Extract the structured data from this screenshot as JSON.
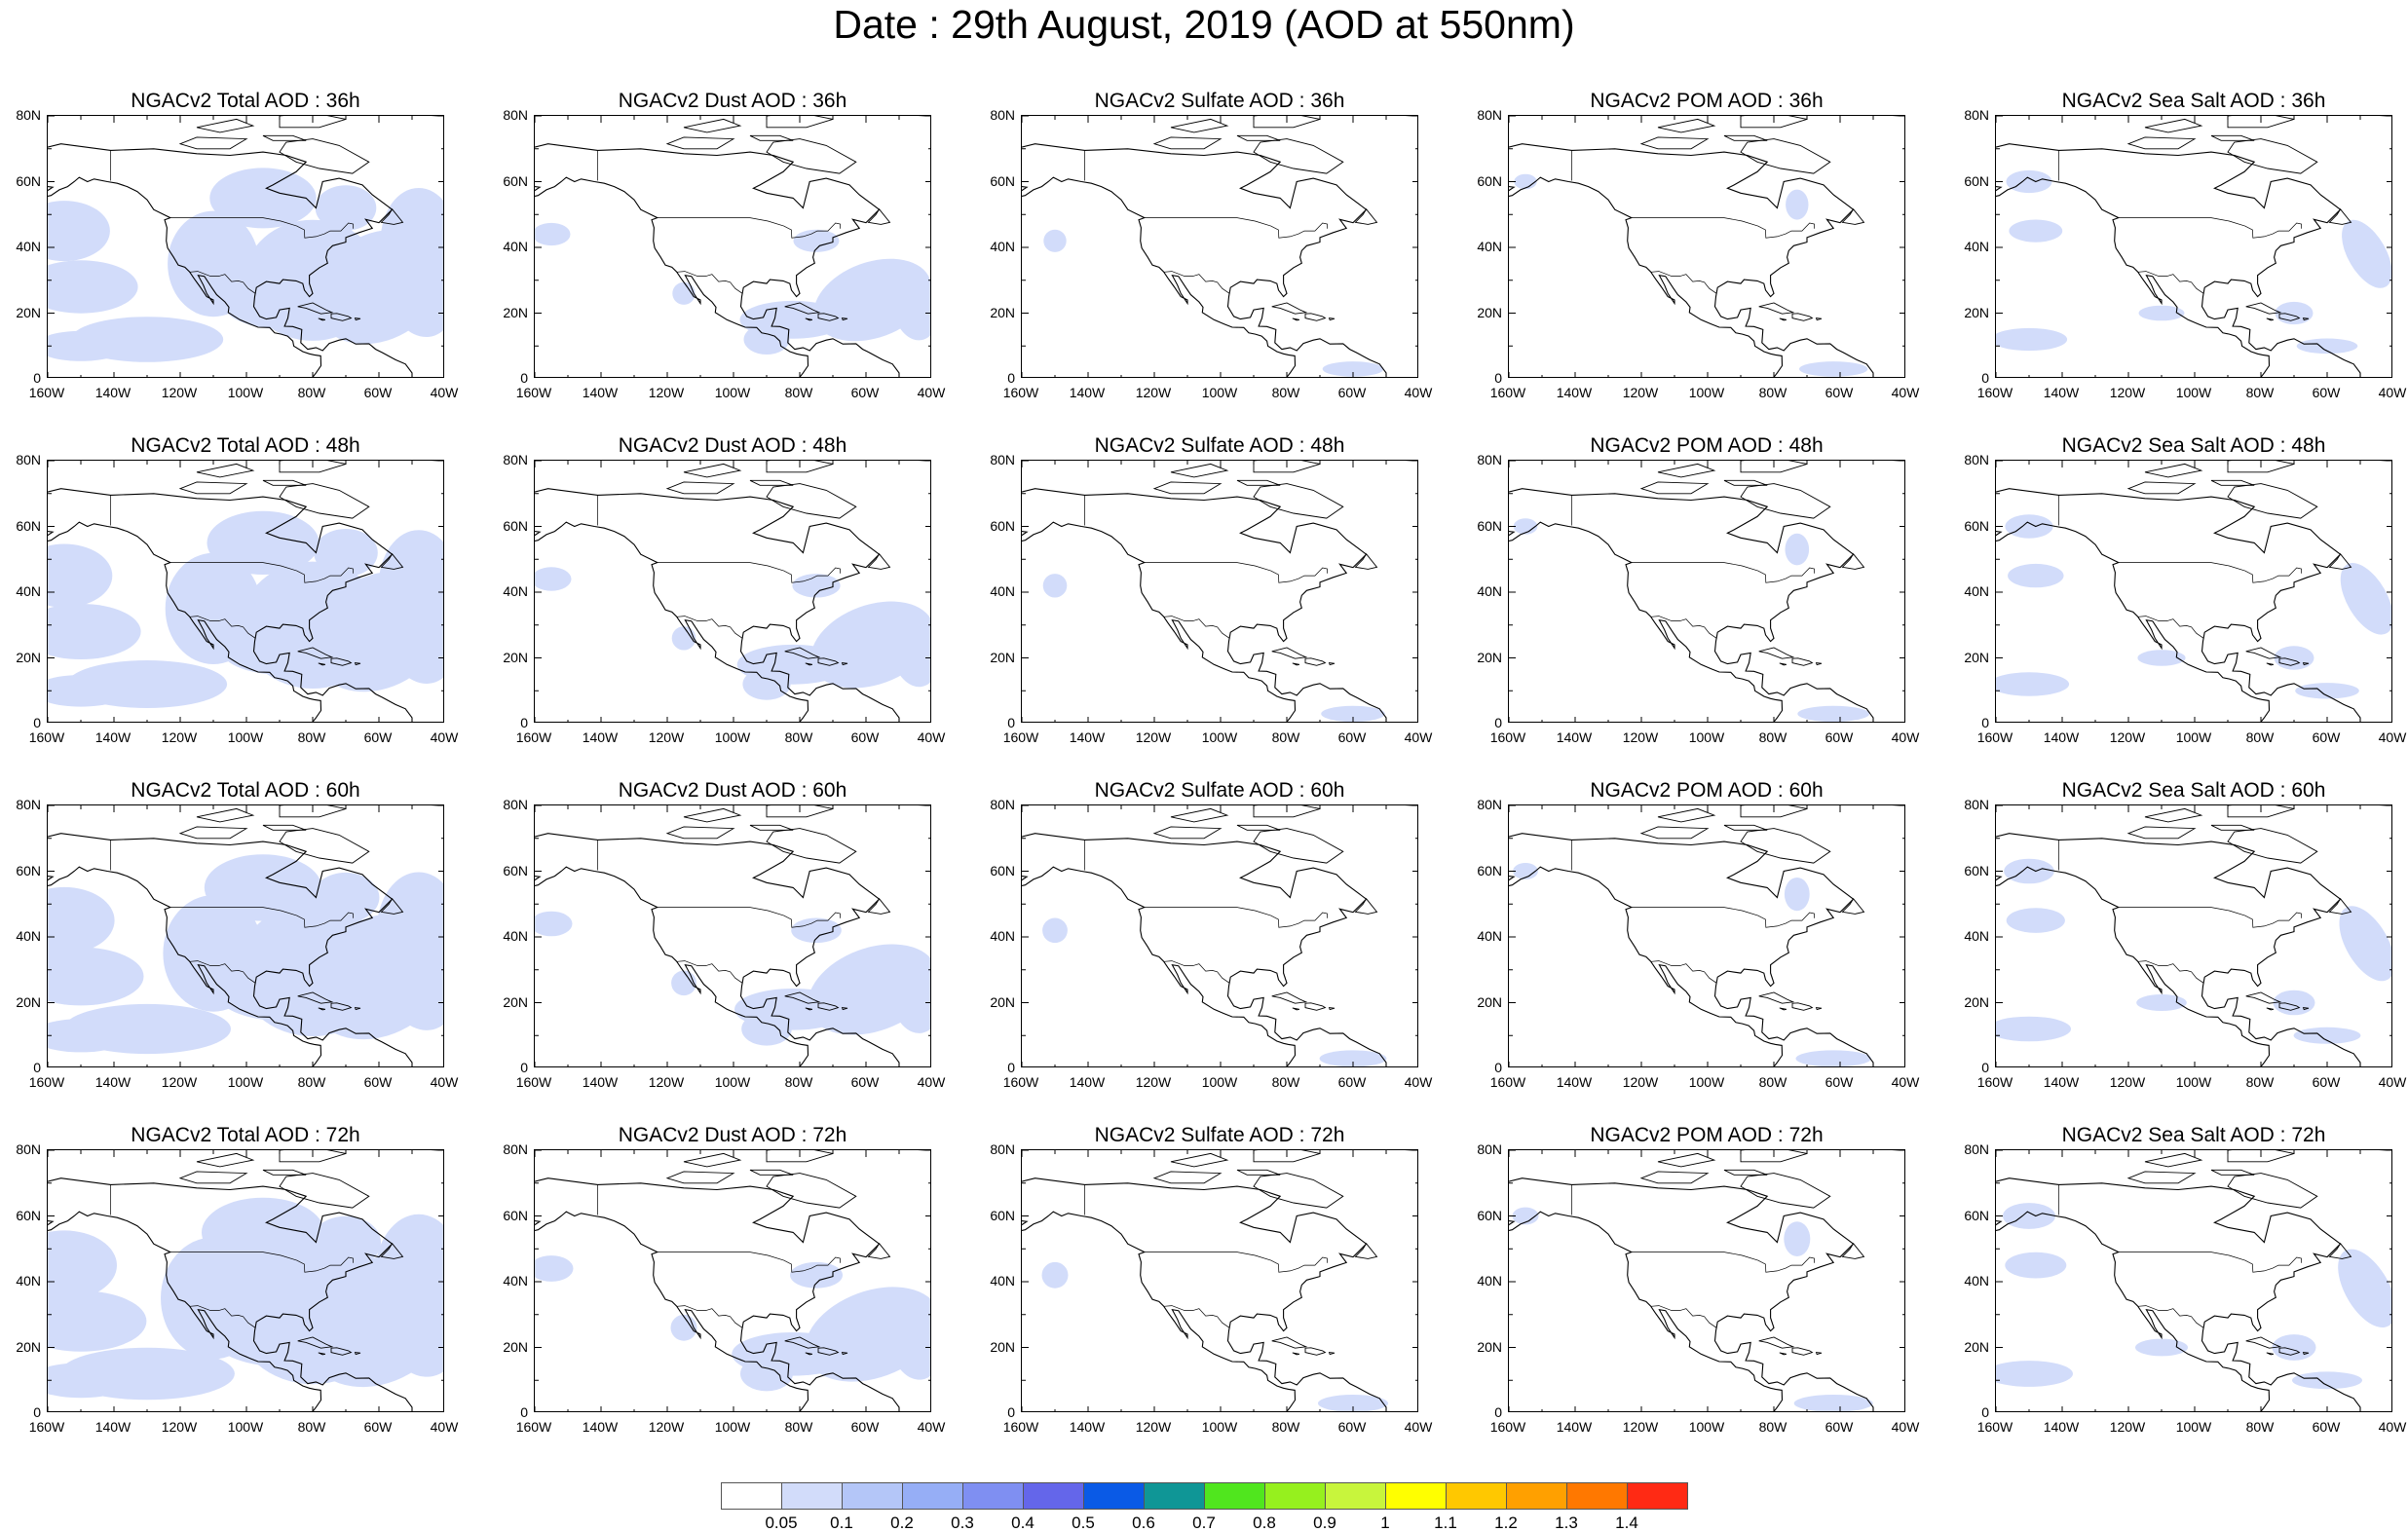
{
  "title": "Date : 29th August, 2019 (AOD at 550nm)",
  "map": {
    "lon_range": [
      "160W",
      "40W"
    ],
    "lat_range": [
      "0",
      "80N"
    ],
    "lon_ticks": [
      "160W",
      "140W",
      "120W",
      "100W",
      "80W",
      "60W",
      "40W"
    ],
    "lat_ticks": [
      "0",
      "20N",
      "40N",
      "60N",
      "80N"
    ]
  },
  "panels": [
    [
      {
        "title": "NGACv2 Total AOD : 36h",
        "field": "total",
        "hour": "36h"
      },
      {
        "title": "NGACv2 Dust AOD : 36h",
        "field": "dust",
        "hour": "36h"
      },
      {
        "title": "NGACv2 Sulfate AOD : 36h",
        "field": "sulfate",
        "hour": "36h"
      },
      {
        "title": "NGACv2 POM AOD : 36h",
        "field": "pom",
        "hour": "36h"
      },
      {
        "title": "NGACv2 Sea Salt AOD : 36h",
        "field": "seasalt",
        "hour": "36h"
      }
    ],
    [
      {
        "title": "NGACv2 Total AOD : 48h",
        "field": "total",
        "hour": "48h"
      },
      {
        "title": "NGACv2 Dust AOD : 48h",
        "field": "dust",
        "hour": "48h"
      },
      {
        "title": "NGACv2 Sulfate AOD : 48h",
        "field": "sulfate",
        "hour": "48h"
      },
      {
        "title": "NGACv2 POM AOD : 48h",
        "field": "pom",
        "hour": "48h"
      },
      {
        "title": "NGACv2 Sea Salt AOD : 48h",
        "field": "seasalt",
        "hour": "48h"
      }
    ],
    [
      {
        "title": "NGACv2 Total AOD : 60h",
        "field": "total",
        "hour": "60h"
      },
      {
        "title": "NGACv2 Dust AOD : 60h",
        "field": "dust",
        "hour": "60h"
      },
      {
        "title": "NGACv2 Sulfate AOD : 60h",
        "field": "sulfate",
        "hour": "60h"
      },
      {
        "title": "NGACv2 POM AOD : 60h",
        "field": "pom",
        "hour": "60h"
      },
      {
        "title": "NGACv2 Sea Salt AOD : 60h",
        "field": "seasalt",
        "hour": "60h"
      }
    ],
    [
      {
        "title": "NGACv2 Total AOD : 72h",
        "field": "total",
        "hour": "72h"
      },
      {
        "title": "NGACv2 Dust AOD : 72h",
        "field": "dust",
        "hour": "72h"
      },
      {
        "title": "NGACv2 Sulfate AOD : 72h",
        "field": "sulfate",
        "hour": "72h"
      },
      {
        "title": "NGACv2 POM AOD : 72h",
        "field": "pom",
        "hour": "72h"
      },
      {
        "title": "NGACv2 Sea Salt  AOD : 72h",
        "field": "seasalt",
        "hour": "72h"
      }
    ]
  ],
  "colorbar": {
    "colors": [
      "#ffffff",
      "#d2dcfa",
      "#b4c6f8",
      "#96aef6",
      "#7f8ff2",
      "#6466ea",
      "#0a5ae6",
      "#0f9696",
      "#50e61e",
      "#96f01e",
      "#c8f53c",
      "#ffff00",
      "#ffc800",
      "#ffa000",
      "#ff7800",
      "#ff2a14"
    ],
    "labels": [
      "0.05",
      "0.1",
      "0.2",
      "0.3",
      "0.4",
      "0.5",
      "0.6",
      "0.7",
      "0.8",
      "0.9",
      "1",
      "1.1",
      "1.2",
      "1.3",
      "1.4"
    ]
  }
}
